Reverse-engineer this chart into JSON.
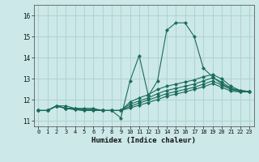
{
  "xlabel": "Humidex (Indice chaleur)",
  "bg_color": "#cce8e8",
  "line_color": "#1a6b5a",
  "grid_color": "#aad0d0",
  "xlim": [
    -0.5,
    23.5
  ],
  "ylim": [
    10.75,
    16.5
  ],
  "xticks": [
    0,
    1,
    2,
    3,
    4,
    5,
    6,
    7,
    8,
    9,
    10,
    11,
    12,
    13,
    14,
    15,
    16,
    17,
    18,
    19,
    20,
    21,
    22,
    23
  ],
  "yticks": [
    11,
    12,
    13,
    14,
    15,
    16
  ],
  "lines": [
    {
      "x": [
        0,
        1,
        2,
        3,
        4,
        5,
        6,
        7,
        8,
        9,
        10,
        11,
        12,
        13,
        14,
        15,
        16,
        17,
        18,
        19,
        20,
        21,
        22,
        23
      ],
      "y": [
        11.5,
        11.5,
        11.72,
        11.72,
        11.6,
        11.6,
        11.6,
        11.5,
        11.5,
        11.15,
        12.9,
        14.1,
        12.2,
        12.9,
        15.3,
        15.65,
        15.65,
        15.0,
        13.5,
        13.1,
        12.75,
        12.55,
        12.4,
        12.4
      ]
    },
    {
      "x": [
        0,
        1,
        2,
        3,
        4,
        5,
        6,
        7,
        8,
        9,
        10,
        11,
        12,
        13,
        14,
        15,
        16,
        17,
        18,
        19,
        20,
        21,
        22,
        23
      ],
      "y": [
        11.5,
        11.5,
        11.72,
        11.6,
        11.6,
        11.55,
        11.55,
        11.5,
        11.5,
        11.5,
        11.9,
        12.1,
        12.25,
        12.5,
        12.65,
        12.75,
        12.85,
        12.95,
        13.1,
        13.2,
        13.0,
        12.65,
        12.45,
        12.4
      ]
    },
    {
      "x": [
        0,
        1,
        2,
        3,
        4,
        5,
        6,
        7,
        8,
        9,
        10,
        11,
        12,
        13,
        14,
        15,
        16,
        17,
        18,
        19,
        20,
        21,
        22,
        23
      ],
      "y": [
        11.5,
        11.5,
        11.72,
        11.6,
        11.6,
        11.55,
        11.55,
        11.5,
        11.5,
        11.5,
        11.8,
        11.95,
        12.1,
        12.3,
        12.45,
        12.55,
        12.65,
        12.75,
        12.9,
        13.05,
        12.85,
        12.55,
        12.45,
        12.4
      ]
    },
    {
      "x": [
        0,
        1,
        2,
        3,
        4,
        5,
        6,
        7,
        8,
        9,
        10,
        11,
        12,
        13,
        14,
        15,
        16,
        17,
        18,
        19,
        20,
        21,
        22,
        23
      ],
      "y": [
        11.5,
        11.5,
        11.72,
        11.6,
        11.55,
        11.5,
        11.5,
        11.5,
        11.5,
        11.5,
        11.7,
        11.85,
        12.0,
        12.15,
        12.3,
        12.4,
        12.5,
        12.6,
        12.75,
        12.9,
        12.7,
        12.5,
        12.4,
        12.4
      ]
    },
    {
      "x": [
        0,
        1,
        2,
        3,
        4,
        5,
        6,
        7,
        8,
        9,
        10,
        11,
        12,
        13,
        14,
        15,
        16,
        17,
        18,
        19,
        20,
        21,
        22,
        23
      ],
      "y": [
        11.5,
        11.5,
        11.72,
        11.6,
        11.55,
        11.5,
        11.5,
        11.5,
        11.5,
        11.5,
        11.62,
        11.75,
        11.88,
        12.02,
        12.18,
        12.28,
        12.38,
        12.5,
        12.62,
        12.78,
        12.6,
        12.42,
        12.38,
        12.38
      ]
    }
  ]
}
